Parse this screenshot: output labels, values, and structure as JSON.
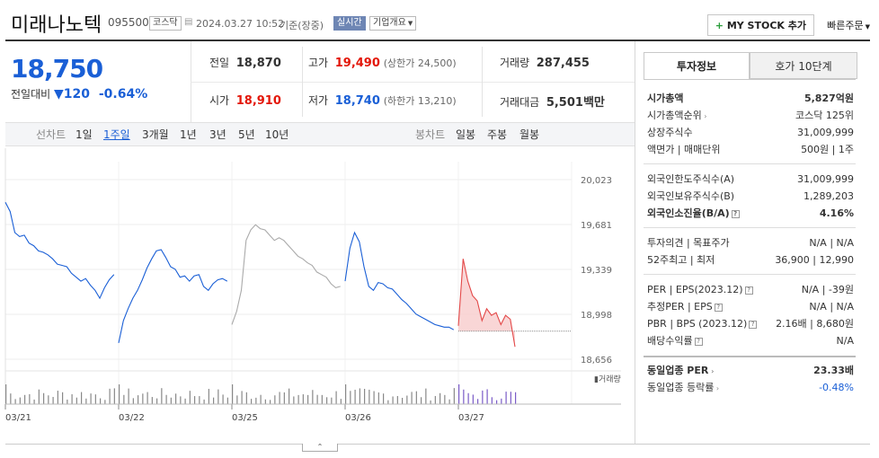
{
  "header": {
    "name": "미래나노텍",
    "code": "095500",
    "market_tag": "코스닥",
    "datetime": "2024.03.27 10:52",
    "basis": "기준(장중)",
    "realtime_tag": "실시간",
    "company_overview": "기업개요",
    "mystock_button": "MY STOCK 추가",
    "quick_order": "빠른주문"
  },
  "quote": {
    "price": "18,750",
    "change_label": "전일대비",
    "change": "120",
    "change_pct": "-0.64%",
    "prev_close_label": "전일",
    "prev_close": "18,870",
    "open_label": "시가",
    "open": "18,910",
    "high_label": "고가",
    "high": "19,490",
    "upper_limit": "(상한가 24,500)",
    "low_label": "저가",
    "low": "18,740",
    "lower_limit": "(하한가 13,210)",
    "volume_label": "거래량",
    "volume": "287,455",
    "amount_label": "거래대금",
    "amount": "5,501",
    "amount_unit": "백만"
  },
  "chart_tabs": {
    "line_label": "선차트",
    "line_periods": [
      "1일",
      "1주일",
      "3개월",
      "1년",
      "3년",
      "5년",
      "10년"
    ],
    "active_period": "1주일",
    "candle_label": "봉차트",
    "candle_periods": [
      "일봉",
      "주봉",
      "월봉"
    ]
  },
  "chart_data": {
    "type": "line",
    "title": "",
    "xlabel": "",
    "ylabel": "",
    "y_ticks": [
      "20,023",
      "19,681",
      "19,339",
      "18,998",
      "18,656"
    ],
    "ylim": [
      18656,
      20023
    ],
    "x_ticks": [
      "03/21",
      "03/22",
      "03/25",
      "03/26",
      "03/27"
    ],
    "volume_label": "거래량",
    "reference_line": 18870,
    "colors": {
      "up": "#1a5fd6",
      "gray": "#aaaaaa",
      "today": "#e34848"
    },
    "series": [
      {
        "day": "03/21",
        "color": "#1a5fd6",
        "values": [
          19850,
          19780,
          19620,
          19590,
          19600,
          19540,
          19520,
          19480,
          19470,
          19450,
          19420,
          19380,
          19370,
          19360,
          19310,
          19280,
          19250,
          19270,
          19220,
          19180,
          19120,
          19200,
          19260,
          19300
        ]
      },
      {
        "day": "03/22",
        "color": "#1a5fd6",
        "values": [
          18780,
          18950,
          19040,
          19120,
          19180,
          19260,
          19350,
          19420,
          19480,
          19490,
          19430,
          19360,
          19340,
          19280,
          19290,
          19250,
          19290,
          19300,
          19210,
          19180,
          19230,
          19260,
          19270,
          19250
        ]
      },
      {
        "day": "03/25",
        "color": "#aaaaaa",
        "values": [
          18920,
          19020,
          19180,
          19560,
          19640,
          19680,
          19650,
          19640,
          19600,
          19560,
          19580,
          19560,
          19520,
          19480,
          19440,
          19420,
          19390,
          19370,
          19320,
          19300,
          19280,
          19230,
          19200,
          19210
        ]
      },
      {
        "day": "03/26",
        "color": "#1a5fd6",
        "values": [
          19250,
          19500,
          19620,
          19550,
          19360,
          19210,
          19180,
          19240,
          19230,
          19200,
          19190,
          19150,
          19110,
          19080,
          19040,
          19000,
          18980,
          18960,
          18940,
          18920,
          18910,
          18900,
          18900,
          18880
        ]
      },
      {
        "day": "03/27",
        "color": "#e34848",
        "values": [
          18910,
          19420,
          19250,
          19140,
          19100,
          18950,
          19040,
          18990,
          19010,
          18920,
          18990,
          18960,
          18750
        ]
      }
    ]
  },
  "panel": {
    "tab_invest": "투자정보",
    "tab_hoga": "호가 10단계",
    "group1": [
      {
        "k": "시가총액",
        "v": "5,827억원"
      },
      {
        "k": "시가총액순위",
        "v": "코스닥 125위"
      },
      {
        "k": "상장주식수",
        "v": "31,009,999"
      },
      {
        "k": "액면가 | 매매단위",
        "v": "500원 | 1주"
      }
    ],
    "group2": [
      {
        "k": "외국인한도주식수(A)",
        "v": "31,009,999"
      },
      {
        "k": "외국인보유주식수(B)",
        "v": "1,289,203"
      },
      {
        "k": "외국인소진율(B/A)",
        "v": "4.16%"
      }
    ],
    "group3": [
      {
        "k": "투자의견 | 목표주가",
        "v": "N/A | N/A"
      },
      {
        "k": "52주최고 | 최저",
        "v": "36,900 | 12,990"
      }
    ],
    "group4": [
      {
        "k": "PER | EPS(2023.12)",
        "v": "N/A | -39원"
      },
      {
        "k": "추정PER | EPS",
        "v": "N/A | N/A"
      },
      {
        "k": "PBR | BPS (2023.12)",
        "v": "2.16배 | 8,680원"
      },
      {
        "k": "배당수익률",
        "v": "N/A"
      }
    ],
    "group5": [
      {
        "k": "동일업종 PER",
        "v": "23.33배"
      },
      {
        "k": "동일업종 등락률",
        "v": "-0.48%"
      }
    ]
  }
}
